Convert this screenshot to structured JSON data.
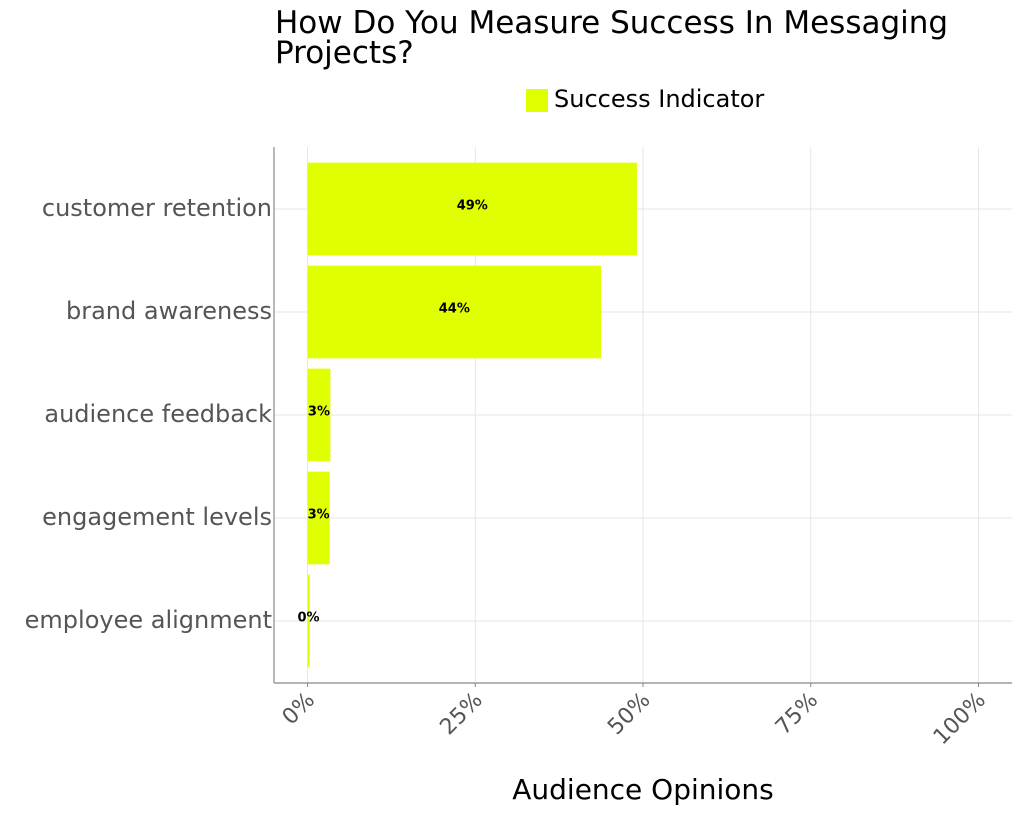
{
  "chart_data": {
    "type": "barh",
    "title": "How Do You Measure Success In Messaging Projects?",
    "x_label": "Audience Opinions",
    "categories": [
      "customer retention",
      "brand awareness",
      "audience feedback",
      "engagement levels",
      "employee alignment"
    ],
    "series": [
      {
        "name": "Success Indicator",
        "color": "#e0ff00",
        "values": [
          49.1,
          43.75,
          3.4,
          3.3,
          0.3
        ],
        "value_labels": [
          "49%",
          "44%",
          "3%",
          "3%",
          "0%"
        ]
      }
    ],
    "xlim": [
      -5,
      105
    ],
    "xticks": [
      {
        "value": 0,
        "label": "0%"
      },
      {
        "value": 25,
        "label": "25%"
      },
      {
        "value": 50,
        "label": "50%"
      },
      {
        "value": 75,
        "label": "75%"
      },
      {
        "value": 100,
        "label": "100%"
      }
    ],
    "grid": true,
    "legend_position": "top"
  }
}
